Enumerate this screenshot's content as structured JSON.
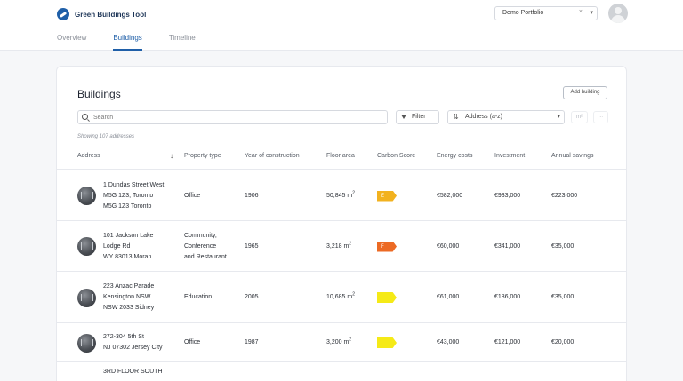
{
  "app": {
    "title": "Green Buildings Tool"
  },
  "header": {
    "portfolio": "Demo Portfolio",
    "clear_icon": "×",
    "caret_icon": "▾"
  },
  "tabs": [
    {
      "label": "Overview",
      "active": false
    },
    {
      "label": "Buildings",
      "active": true
    },
    {
      "label": "Timeline",
      "active": false
    }
  ],
  "page": {
    "title": "Buildings",
    "add_label": "Add building",
    "search_placeholder": "Search",
    "filter_label": "Filter",
    "sort_label": "Address (a-z)",
    "unit_label": "m²",
    "more_label": "...",
    "count_text": "Showing 107 addresses"
  },
  "table": {
    "columns": [
      "Address",
      "Property type",
      "Year of construction",
      "Floor area",
      "Carbon Score",
      "Energy costs",
      "Investment",
      "Annual savings"
    ],
    "rows": [
      {
        "address": [
          "1 Dundas Street West",
          "M5G 1Z3, Toronto",
          "M5G 1Z3 Toronto"
        ],
        "type": [
          "Office"
        ],
        "year": "1906",
        "area": "50,845 m",
        "area_unit": "2",
        "score": "E",
        "score_color": "#f2b21f",
        "energy": "€582,000",
        "investment": "€933,000",
        "savings": "€223,000"
      },
      {
        "address": [
          "101 Jackson Lake",
          "Lodge Rd",
          "WY 83013 Moran"
        ],
        "type": [
          "Community,",
          "Conference",
          "and Restaurant"
        ],
        "year": "1965",
        "area": "3,218 m",
        "area_unit": "2",
        "score": "F",
        "score_color": "#ec6a24",
        "energy": "€60,000",
        "investment": "€341,000",
        "savings": "€35,000"
      },
      {
        "address": [
          "223 Anzac Parade",
          "Kensington NSW",
          "NSW 2033 Sidney"
        ],
        "type": [
          "Education"
        ],
        "year": "2005",
        "area": "10,685 m",
        "area_unit": "2",
        "score": "",
        "score_color": "#f5ea17",
        "energy": "€61,000",
        "investment": "€186,000",
        "savings": "€35,000"
      },
      {
        "address": [
          "272-304 5th St",
          "NJ 07302 Jersey City"
        ],
        "type": [
          "Office"
        ],
        "year": "1987",
        "area": "3,200 m",
        "area_unit": "2",
        "score": "",
        "score_color": "#f5ea17",
        "energy": "€43,000",
        "investment": "€121,000",
        "savings": "€20,000"
      },
      {
        "address": [
          "3RD FLOOR SOUTH"
        ],
        "type": [],
        "year": "",
        "area": "",
        "area_unit": "",
        "score": "",
        "score_color": "",
        "energy": "",
        "investment": "",
        "savings": ""
      }
    ]
  },
  "colors": {
    "accent": "#1f5fa8",
    "brand_text": "#1d3557"
  },
  "icons": {
    "logo": "logo-icon",
    "search": "search-icon",
    "filter": "filter-icon",
    "sort": "sort-icon",
    "avatar": "avatar-icon"
  }
}
